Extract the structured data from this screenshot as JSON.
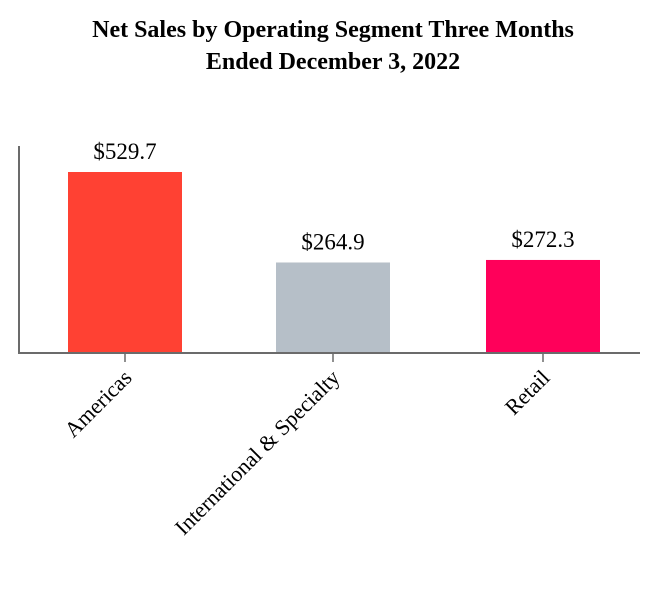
{
  "chart_data": {
    "type": "bar",
    "title_lines": [
      "Net Sales by Operating Segment Three Months",
      "Ended December 3, 2022"
    ],
    "categories": [
      "Americas",
      "International & Specialty",
      "Retail"
    ],
    "values": [
      529.7,
      264.9,
      272.3
    ],
    "value_labels": [
      "$529.7",
      "$264.9",
      "$272.3"
    ],
    "colors": [
      "#FF4133",
      "#B6BFC8",
      "#FF005A"
    ],
    "xlabel": "",
    "ylabel": "",
    "ylim": [
      0,
      600
    ],
    "grid": false,
    "legend": "none"
  }
}
